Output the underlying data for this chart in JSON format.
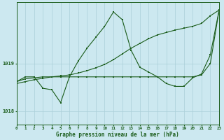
{
  "xlabel": "Graphe pression niveau de la mer (hPa)",
  "bg_color": "#cce8f0",
  "line_color": "#1a5c1a",
  "grid_color": "#aacfd8",
  "xmin": 0,
  "xmax": 23,
  "ymin": 1017.72,
  "ymax": 1020.28,
  "yticks": [
    1018,
    1019
  ],
  "xticks": [
    0,
    1,
    2,
    3,
    4,
    5,
    6,
    7,
    8,
    9,
    10,
    11,
    12,
    13,
    14,
    15,
    16,
    17,
    18,
    19,
    20,
    21,
    22,
    23
  ],
  "y_zigzag": [
    1018.62,
    1018.72,
    1018.72,
    1018.48,
    1018.45,
    1018.18,
    1018.72,
    1019.05,
    1019.32,
    1019.55,
    1019.78,
    1020.08,
    1019.92,
    1019.28,
    1018.92,
    1018.82,
    1018.72,
    1018.58,
    1018.52,
    1018.52,
    1018.7,
    1018.78,
    1019.18,
    1020.12
  ],
  "y_trend": [
    1018.58,
    1018.62,
    1018.66,
    1018.69,
    1018.72,
    1018.74,
    1018.76,
    1018.8,
    1018.85,
    1018.91,
    1018.98,
    1019.08,
    1019.2,
    1019.32,
    1019.42,
    1019.52,
    1019.6,
    1019.65,
    1019.7,
    1019.74,
    1019.78,
    1019.84,
    1020.0,
    1020.12
  ],
  "y_flat": [
    1018.62,
    1018.68,
    1018.7,
    1018.72,
    1018.72,
    1018.72,
    1018.72,
    1018.72,
    1018.72,
    1018.72,
    1018.72,
    1018.72,
    1018.72,
    1018.72,
    1018.72,
    1018.72,
    1018.72,
    1018.72,
    1018.72,
    1018.72,
    1018.72,
    1018.76,
    1019.0,
    1020.12
  ]
}
